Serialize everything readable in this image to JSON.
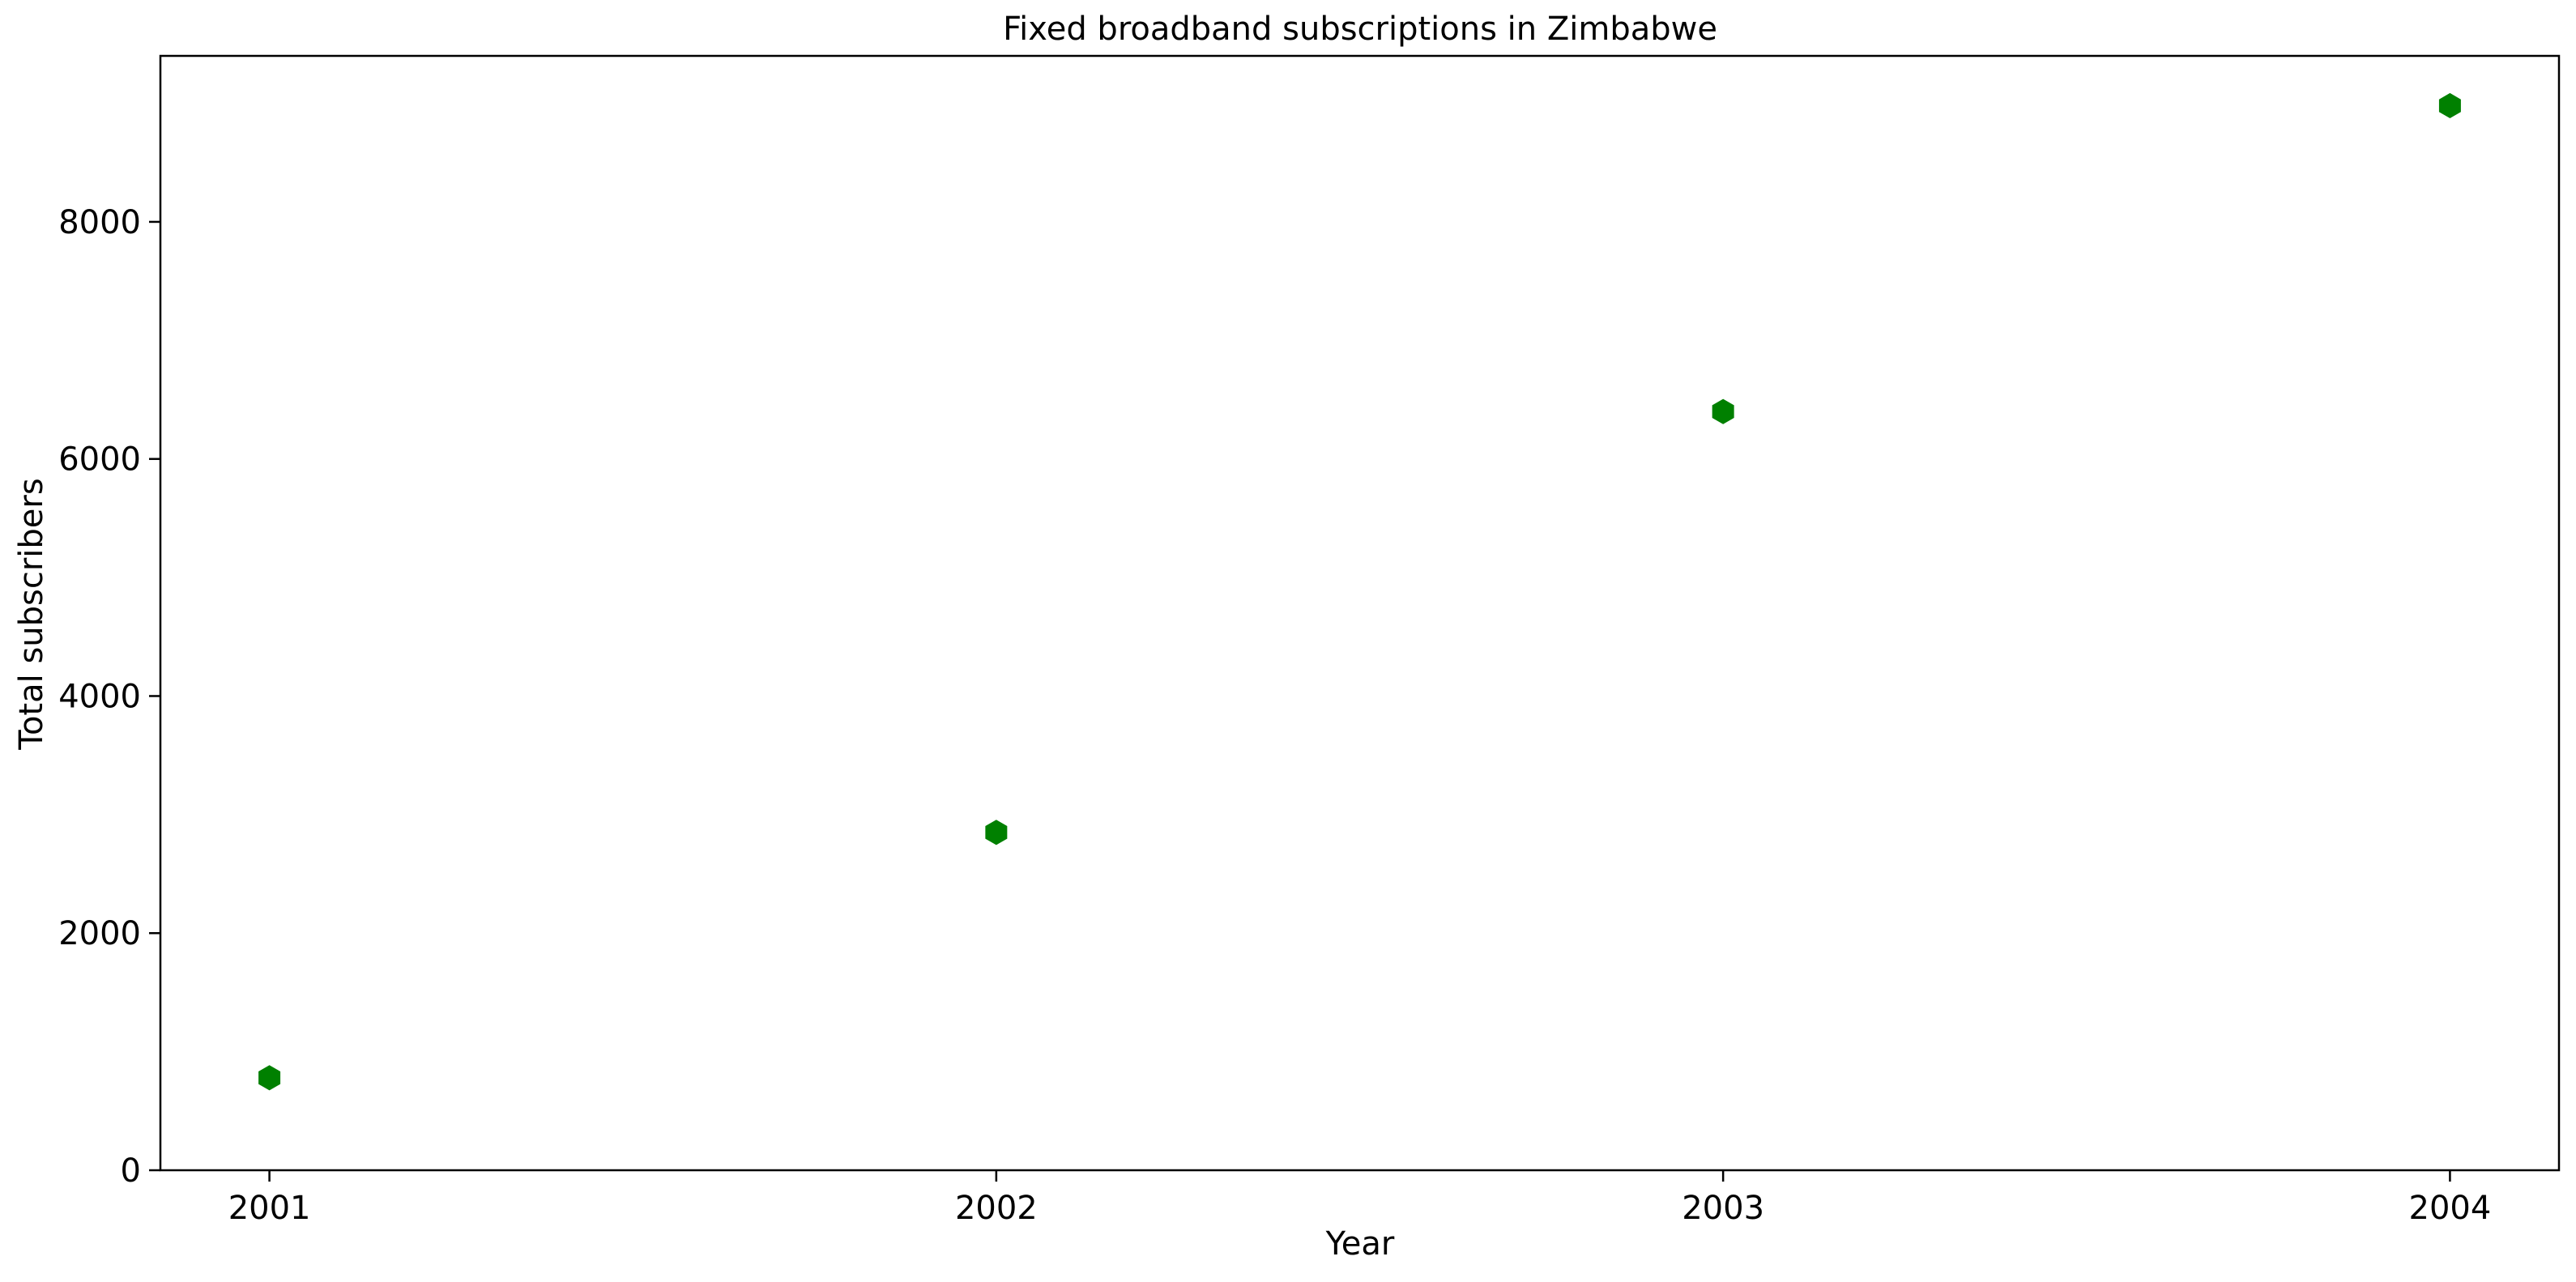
{
  "chart_data": {
    "type": "scatter",
    "title": "Fixed broadband subscriptions in Zimbabwe",
    "xlabel": "Year",
    "ylabel": "Total subscribers",
    "x": [
      2001,
      2002,
      2003,
      2004
    ],
    "x_tick_labels": [
      "2001",
      "2002",
      "2003",
      "2004"
    ],
    "series": [
      {
        "values": [
          780,
          2850,
          6400,
          8980
        ],
        "color": "#008000",
        "marker": "hexagon"
      }
    ],
    "xlim": [
      2000.85,
      2004.15
    ],
    "ylim": [
      0,
      9400
    ],
    "y_ticks": [
      0,
      2000,
      4000,
      6000,
      8000
    ],
    "y_tick_labels": [
      "0",
      "2000",
      "4000",
      "6000",
      "8000"
    ],
    "grid": false,
    "legend": "none"
  }
}
